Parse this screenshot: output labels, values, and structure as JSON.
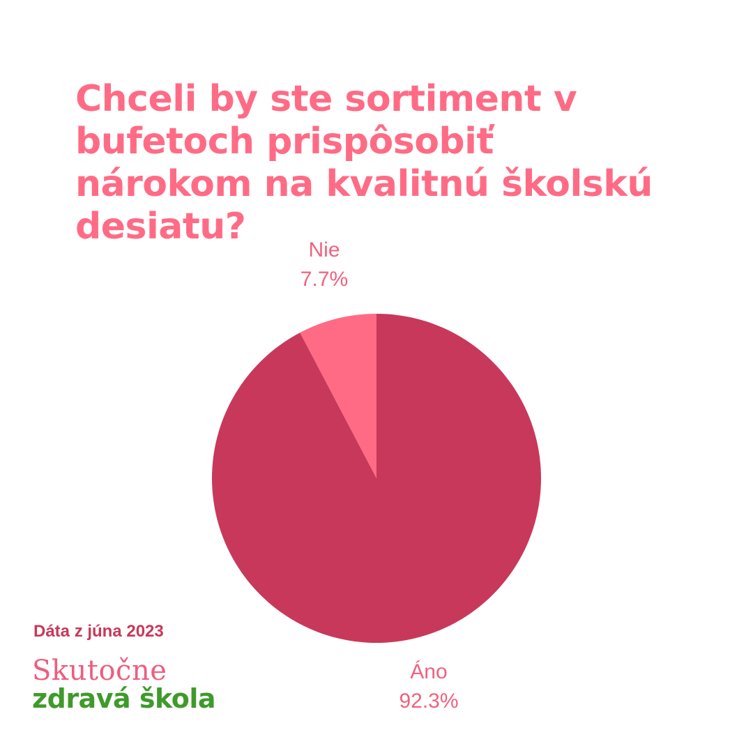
{
  "chart_data": {
    "type": "pie",
    "title_lines": [
      "Chceli by ste sortiment v",
      "bufetoch prispôsobiť",
      "nárokom na kvalitnú školskú",
      "desiatu?"
    ],
    "slices": [
      {
        "label": "Nie",
        "value": 7.7,
        "value_label": "7.7%",
        "color": "#ff6b85"
      },
      {
        "label": "Áno",
        "value": 92.3,
        "value_label": "92.3%",
        "color": "#c8385a"
      }
    ]
  },
  "footer": {
    "date": "Dáta z júna 2023",
    "brand_line1": "Skutočne",
    "brand_line2": "zdravá škola"
  },
  "colors": {
    "title": "#ff6b85",
    "label_text": "#f0627f",
    "date_text": "#c8385a",
    "brand_pink": "#ee5d7d",
    "brand_green": "#3f9a2b"
  }
}
